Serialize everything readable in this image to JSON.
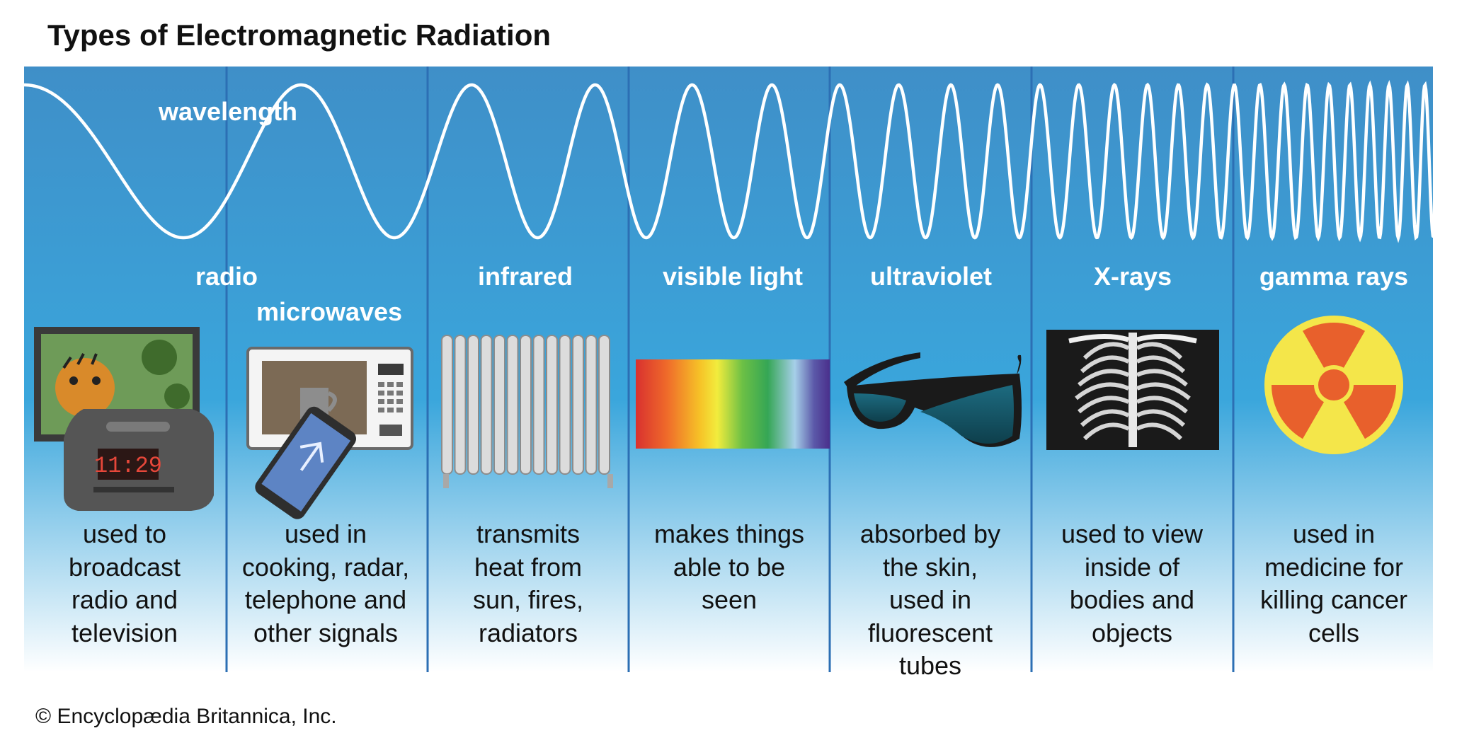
{
  "title": "Types of Electromagnetic Radiation",
  "wavelength_label": "wavelength",
  "colors": {
    "band_top": "#3f8fc8",
    "band_mid": "#3aa6dc",
    "band_bottom": "#ffffff",
    "divider": "#2c6fb4",
    "wave": "#ffffff"
  },
  "bands": [
    {
      "label": "radio",
      "icon": "tv-and-clock-radio-icon",
      "description": "used to\nbroadcast\nradio and\ntelevision"
    },
    {
      "label": "microwaves",
      "icon": "microwave-oven-and-phone-icon",
      "description": "used in\ncooking, radar,\ntelephone and\nother signals"
    },
    {
      "label": "infrared",
      "icon": "radiator-icon",
      "description": "transmits\nheat from\nsun, fires,\nradiators"
    },
    {
      "label": "visible light",
      "icon": "spectrum-icon",
      "description": "makes things\nable to be\nseen"
    },
    {
      "label": "ultraviolet",
      "icon": "sunglasses-icon",
      "description": "absorbed by\nthe skin,\nused in\nfluorescent\ntubes"
    },
    {
      "label": "X-rays",
      "icon": "chest-xray-icon",
      "description": "used to view\ninside of\nbodies and\nobjects"
    },
    {
      "label": "gamma rays",
      "icon": "radiation-symbol-icon",
      "description": "used in\nmedicine for\nkilling cancer\ncells"
    }
  ],
  "credit": "© Encyclopædia Britannica, Inc."
}
